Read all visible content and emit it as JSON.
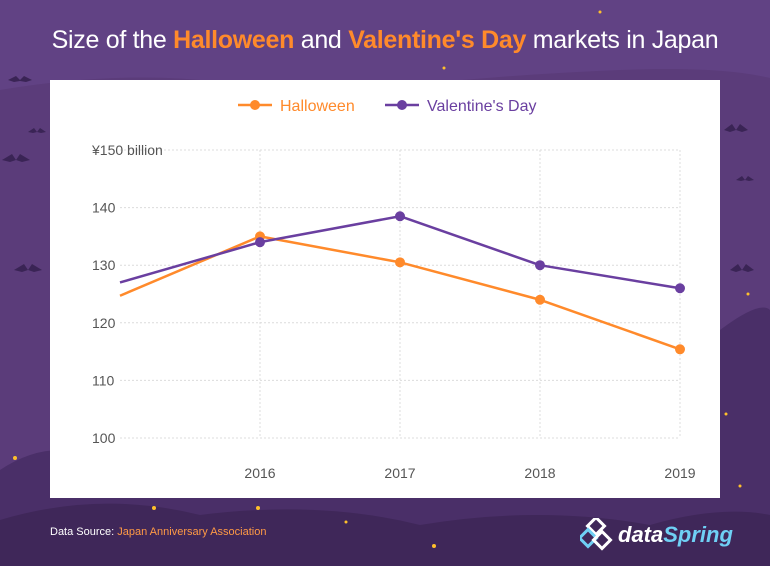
{
  "title": {
    "part1": "Size of the ",
    "highlight1": "Halloween",
    "part2": " and ",
    "highlight2": "Valentine's Day",
    "part3": " markets in Japan"
  },
  "footer": {
    "source_label": "Data Source: ",
    "source_name": "Japan Anniversary Association"
  },
  "brand": {
    "name_part1": "data",
    "name_part2": "Spring"
  },
  "colors": {
    "background": "#5b3c7a",
    "halloween": "#ff8a2b",
    "valentines": "#6a3fa0",
    "grid": "#dcdcdc",
    "axis_text": "#555555"
  },
  "chart_data": {
    "type": "line",
    "title": "Size of the Halloween and Valentine's Day markets in Japan",
    "x": [
      2016,
      2017,
      2018,
      2019
    ],
    "xlim": [
      2015,
      2019
    ],
    "ylim": [
      100,
      150
    ],
    "yticks": [
      100,
      110,
      120,
      130,
      140,
      150
    ],
    "ytick_labels": [
      "100",
      "110",
      "120",
      "130",
      "140",
      "¥150 billion"
    ],
    "xtick_labels": [
      "2016",
      "2017",
      "2018",
      "2019"
    ],
    "grid": true,
    "legend": "top-center",
    "series": [
      {
        "name": "Halloween",
        "color": "#ff8a2b",
        "line_start": [
          2015,
          124.7
        ],
        "x": [
          2016,
          2017,
          2018,
          2019
        ],
        "values": [
          135,
          130.5,
          124,
          115.4
        ]
      },
      {
        "name": "Valentine's Day",
        "color": "#6a3fa0",
        "line_start": [
          2015,
          127
        ],
        "x": [
          2016,
          2017,
          2018,
          2019
        ],
        "values": [
          134,
          138.5,
          130,
          126
        ]
      }
    ]
  }
}
